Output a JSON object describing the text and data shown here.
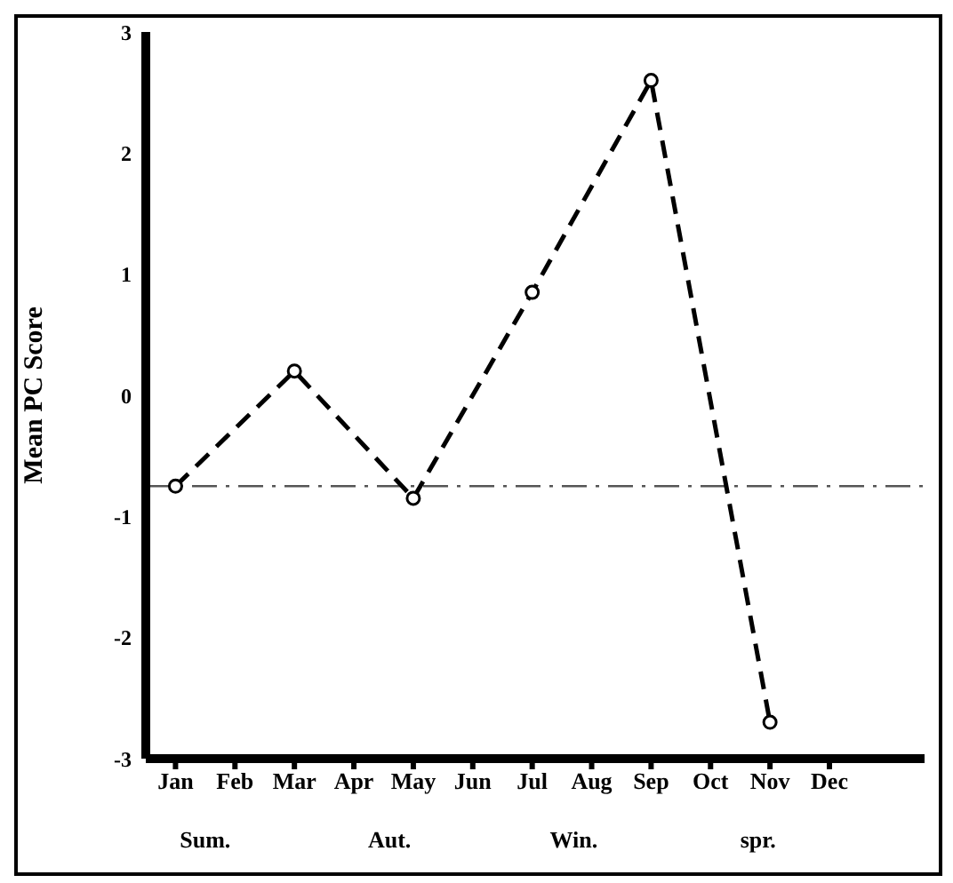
{
  "chart_data": {
    "type": "line",
    "ylabel": "Mean PC Score",
    "categories": [
      "Jan",
      "Feb",
      "Mar",
      "Apr",
      "May",
      "Jun",
      "Jul",
      "Aug",
      "Sep",
      "Oct",
      "Nov",
      "Dec"
    ],
    "series": [
      {
        "color": "#000000",
        "values": [
          -0.75,
          null,
          0.2,
          null,
          -0.85,
          null,
          0.85,
          null,
          2.6,
          null,
          -2.7,
          null
        ]
      }
    ],
    "ylim": [
      -3,
      3
    ],
    "yticks": [
      3,
      2,
      1,
      0,
      -1,
      -2,
      -3
    ],
    "ref_lines": [
      {
        "axis": "y",
        "value": -0.75,
        "color": "#555555",
        "line_style": "dashed"
      }
    ],
    "annotations": [
      "Sum.",
      "Aut.",
      "Win.",
      "spr."
    ],
    "marker": "circle",
    "line_style": "dashed",
    "grid": false,
    "legend": false
  }
}
